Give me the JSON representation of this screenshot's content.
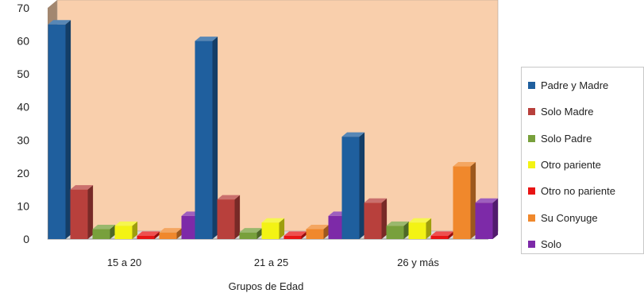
{
  "chart_data": {
    "type": "bar",
    "title": "",
    "xlabel": "Grupos de Edad",
    "ylabel": "",
    "ylim": [
      0,
      70
    ],
    "yticks": [
      0,
      10,
      20,
      30,
      40,
      50,
      60,
      70
    ],
    "categories": [
      "15 a 20",
      "21 a 25",
      "26 y más"
    ],
    "grid": false,
    "three_d": true,
    "legend_position": "right",
    "series": [
      {
        "name": "Padre y Madre",
        "color": "#1f5f9e",
        "values": [
          65,
          60,
          31
        ]
      },
      {
        "name": "Solo Madre",
        "color": "#b8403c",
        "values": [
          15,
          12,
          11
        ]
      },
      {
        "name": "Solo Padre",
        "color": "#78a03c",
        "values": [
          3,
          2,
          4
        ]
      },
      {
        "name": "Otro pariente",
        "color": "#f3f314",
        "values": [
          4,
          5,
          5
        ]
      },
      {
        "name": "Otro no pariente",
        "color": "#e81414",
        "values": [
          1,
          1,
          1
        ]
      },
      {
        "name": "Su Conyuge",
        "color": "#f0882c",
        "values": [
          2,
          3,
          22
        ]
      },
      {
        "name": "Solo",
        "color": "#7d2aa8",
        "values": [
          7,
          7,
          11
        ]
      }
    ],
    "plot_background": "#f9cfac"
  }
}
